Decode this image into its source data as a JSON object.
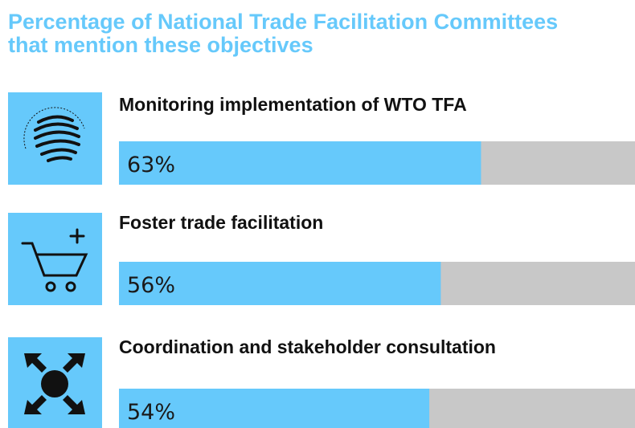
{
  "chart_data": {
    "type": "bar",
    "title": "Percentage of National Trade Facilitation Committees that mention these objectives",
    "categories": [
      "Monitoring implementation of WTO TFA",
      "Foster trade facilitation",
      "Coordination and stakeholder consultation"
    ],
    "values": [
      63,
      56,
      54
    ],
    "value_labels": [
      "63%",
      "56%",
      "54%"
    ],
    "color": "#66c9fb",
    "track_color": "#c8c8c8",
    "xlim": [
      0,
      100
    ]
  }
}
